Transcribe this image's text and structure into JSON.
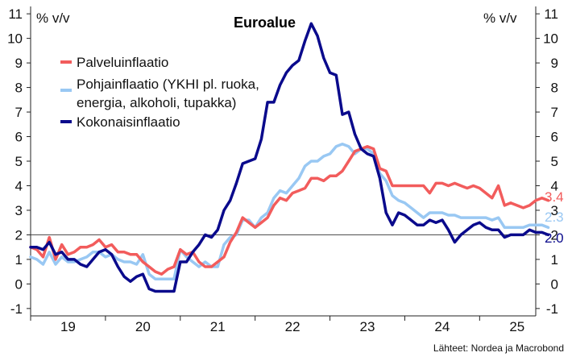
{
  "chart_data": {
    "type": "line",
    "title": "Euroalue",
    "ylabel_left": "% v/v",
    "ylabel_right": "% v/v",
    "ylim": [
      -1.3,
      11.3
    ],
    "yticks": [
      -1,
      0,
      1,
      2,
      3,
      4,
      5,
      6,
      7,
      8,
      9,
      10,
      11
    ],
    "xlim": [
      2019.0,
      2025.75
    ],
    "xticks": [
      "19",
      "20",
      "21",
      "22",
      "23",
      "24",
      "25"
    ],
    "reference_line": 2.0,
    "source": "Lähteet: Nordea ja Macrobond",
    "series": [
      {
        "name": "Palveluinflaatio",
        "color": "#f25c5c",
        "end_label": "3.4",
        "x_start": 2019.0,
        "step_months": 1,
        "values": [
          1.5,
          1.4,
          1.1,
          1.9,
          1.0,
          1.6,
          1.2,
          1.3,
          1.5,
          1.5,
          1.6,
          1.8,
          1.5,
          1.6,
          1.3,
          1.3,
          1.2,
          1.2,
          0.9,
          0.7,
          0.5,
          0.4,
          0.6,
          0.7,
          1.4,
          1.2,
          1.3,
          0.9,
          0.7,
          0.7,
          0.9,
          1.1,
          1.7,
          2.1,
          2.7,
          2.5,
          2.3,
          2.5,
          2.7,
          3.2,
          3.5,
          3.4,
          3.7,
          3.8,
          3.9,
          4.3,
          4.3,
          4.2,
          4.4,
          4.4,
          4.6,
          5.0,
          5.4,
          5.5,
          5.6,
          5.5,
          4.7,
          4.6,
          4.0,
          4.0,
          4.0,
          4.0,
          4.0,
          4.0,
          3.7,
          4.1,
          4.1,
          4.0,
          4.1,
          4.0,
          3.9,
          4.0,
          3.9,
          3.7,
          3.5,
          4.0,
          3.2,
          3.3,
          3.2,
          3.1,
          3.2,
          3.4,
          3.5,
          3.4
        ]
      },
      {
        "name": "Pohjainflaatio (YKHI pl. ruoka, energia, alkoholi, tupakka)",
        "legend_lines": [
          "Pohjainflaatio (YKHI pl. ruoka,",
          "energia, alkoholi, tupakka)"
        ],
        "color": "#99c8f3",
        "end_label": "2.3",
        "x_start": 2019.0,
        "step_months": 1,
        "values": [
          1.1,
          1.0,
          0.8,
          1.3,
          0.8,
          1.1,
          0.9,
          0.9,
          1.0,
          1.1,
          1.3,
          1.3,
          1.1,
          1.2,
          1.0,
          0.9,
          0.9,
          0.8,
          1.2,
          0.4,
          0.2,
          0.2,
          0.2,
          0.2,
          1.4,
          1.1,
          0.9,
          0.7,
          0.9,
          0.7,
          0.7,
          1.6,
          1.9,
          2.0,
          2.6,
          2.6,
          2.3,
          2.7,
          2.9,
          3.5,
          3.8,
          3.7,
          4.0,
          4.3,
          4.8,
          5.0,
          5.0,
          5.2,
          5.3,
          5.6,
          5.7,
          5.6,
          5.3,
          5.5,
          5.5,
          5.3,
          4.5,
          4.2,
          3.6,
          3.4,
          3.3,
          3.1,
          2.9,
          2.7,
          2.9,
          2.9,
          2.9,
          2.8,
          2.8,
          2.7,
          2.7,
          2.7,
          2.7,
          2.7,
          2.6,
          2.7,
          2.3,
          2.3,
          2.3,
          2.3,
          2.4,
          2.4,
          2.4,
          2.3
        ]
      },
      {
        "name": "Kokonaisinflaatio",
        "color": "#0a0a8c",
        "end_label": "2.0",
        "x_start": 2019.0,
        "step_months": 1,
        "values": [
          1.5,
          1.5,
          1.4,
          1.7,
          1.2,
          1.3,
          1.0,
          1.0,
          0.8,
          0.7,
          1.0,
          1.3,
          1.4,
          1.2,
          0.7,
          0.3,
          0.1,
          0.3,
          0.4,
          -0.2,
          -0.3,
          -0.3,
          -0.3,
          -0.3,
          0.9,
          0.9,
          1.3,
          1.6,
          2.0,
          1.9,
          2.2,
          3.0,
          3.4,
          4.1,
          4.9,
          5.0,
          5.1,
          5.9,
          7.4,
          7.4,
          8.1,
          8.6,
          8.9,
          9.1,
          9.9,
          10.6,
          10.1,
          9.2,
          8.6,
          8.5,
          6.9,
          7.0,
          6.1,
          5.5,
          5.3,
          5.2,
          4.3,
          2.9,
          2.4,
          2.9,
          2.8,
          2.6,
          2.4,
          2.4,
          2.6,
          2.5,
          2.6,
          2.2,
          1.7,
          2.0,
          2.2,
          2.4,
          2.5,
          2.3,
          2.2,
          2.2,
          1.9,
          2.0,
          2.0,
          2.0,
          2.2,
          2.1,
          2.1,
          2.0
        ]
      }
    ]
  }
}
